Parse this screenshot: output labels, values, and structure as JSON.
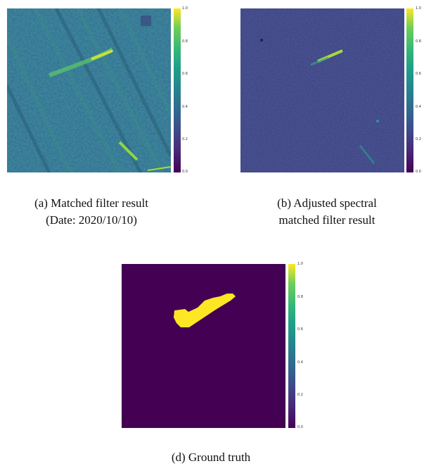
{
  "figure": {
    "panels": [
      {
        "id": "a",
        "caption_lines": [
          "(a) Matched filter result",
          "(Date: 2020/10/10)"
        ],
        "colormap": "viridis",
        "colorbar_ticks": [
          "1.0",
          "0.8",
          "0.6",
          "0.4",
          "0.2",
          "0.0"
        ]
      },
      {
        "id": "b",
        "caption_lines": [
          "(b) Adjusted spectral",
          "matched filter result"
        ],
        "colormap": "viridis",
        "colorbar_ticks": [
          "1.0",
          "0.8",
          "0.6",
          "0.4",
          "0.2",
          "0.0"
        ]
      },
      {
        "id": "d",
        "caption_lines": [
          "(d) Ground truth"
        ],
        "colormap": "viridis",
        "colorbar_ticks": [
          "1.0",
          "0.8",
          "0.6",
          "0.4",
          "0.2",
          "0.0"
        ]
      }
    ]
  },
  "colors": {
    "viridis_low": "#440154",
    "viridis_mid": "#21918c",
    "viridis_high": "#fde725",
    "background": "#ffffff"
  }
}
